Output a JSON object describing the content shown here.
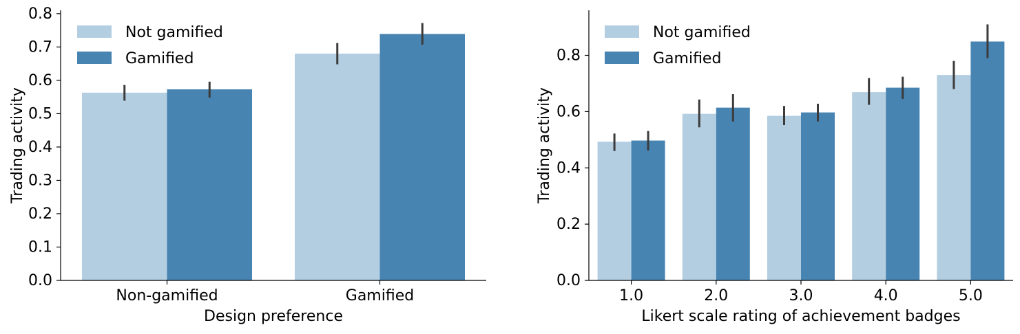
{
  "legend": {
    "entries": [
      {
        "label": "Not gamified",
        "color": "#b3cde1"
      },
      {
        "label": "Gamified",
        "color": "#4884b2"
      }
    ]
  },
  "colors": {
    "not_gamified": "#b3cde1",
    "gamified": "#4884b2",
    "error_bar": "#3b3b3b",
    "axis": "#000000"
  },
  "chart_data": [
    {
      "type": "bar",
      "title": "",
      "xlabel": "Design preference",
      "ylabel": "Trading activity",
      "categories": [
        "Non-gamified",
        "Gamified"
      ],
      "ylim": [
        0,
        0.81
      ],
      "yticks": [
        0.0,
        0.1,
        0.2,
        0.3,
        0.4,
        0.5,
        0.6,
        0.7,
        0.8
      ],
      "ytick_labels": [
        "0.0",
        "0.1",
        "0.2",
        "0.3",
        "0.4",
        "0.5",
        "0.6",
        "0.7",
        "0.8"
      ],
      "legend_position": "top-left",
      "grid": false,
      "series": [
        {
          "name": "Not gamified",
          "values": [
            0.563,
            0.68
          ],
          "ci_low": [
            0.539,
            0.648
          ],
          "ci_high": [
            0.586,
            0.712
          ]
        },
        {
          "name": "Gamified",
          "values": [
            0.573,
            0.739
          ],
          "ci_low": [
            0.548,
            0.707
          ],
          "ci_high": [
            0.596,
            0.772
          ]
        }
      ]
    },
    {
      "type": "bar",
      "title": "",
      "xlabel": "Likert scale rating of achievement badges",
      "ylabel": "Trading activity",
      "categories": [
        "1.0",
        "2.0",
        "3.0",
        "4.0",
        "5.0"
      ],
      "ylim": [
        0,
        0.96
      ],
      "yticks": [
        0.0,
        0.2,
        0.4,
        0.6,
        0.8
      ],
      "ytick_labels": [
        "0.0",
        "0.2",
        "0.4",
        "0.6",
        "0.8"
      ],
      "legend_position": "top-left",
      "grid": false,
      "series": [
        {
          "name": "Not gamified",
          "values": [
            0.493,
            0.592,
            0.585,
            0.669,
            0.73
          ],
          "ci_low": [
            0.46,
            0.544,
            0.552,
            0.624,
            0.68
          ],
          "ci_high": [
            0.522,
            0.643,
            0.62,
            0.719,
            0.78
          ]
        },
        {
          "name": "Gamified",
          "values": [
            0.497,
            0.614,
            0.597,
            0.685,
            0.849
          ],
          "ci_low": [
            0.462,
            0.565,
            0.565,
            0.645,
            0.79
          ],
          "ci_high": [
            0.531,
            0.662,
            0.628,
            0.724,
            0.91
          ]
        }
      ]
    }
  ]
}
